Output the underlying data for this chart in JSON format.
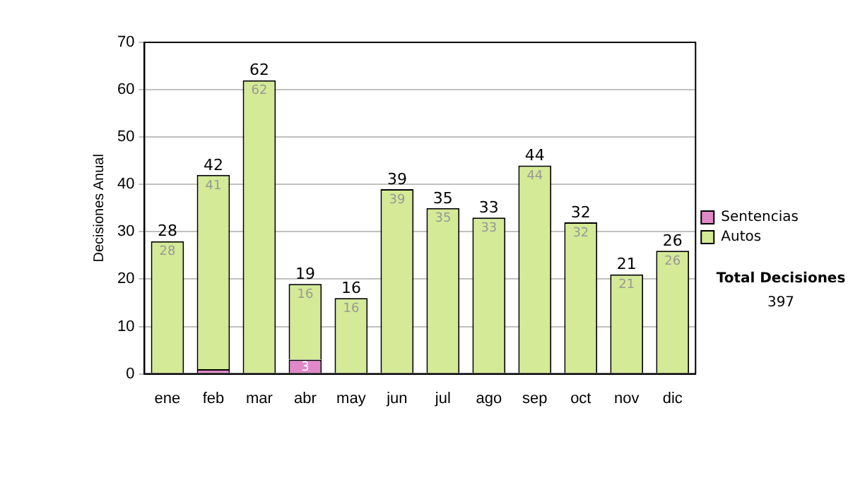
{
  "chart_data": {
    "type": "bar",
    "stacked": true,
    "ylabel": "Decisiones Anual",
    "categories": [
      "ene",
      "feb",
      "mar",
      "abr",
      "may",
      "jun",
      "jul",
      "ago",
      "sep",
      "oct",
      "nov",
      "dic"
    ],
    "series": [
      {
        "name": "Sentencias",
        "color": "#e088c8",
        "values": [
          0,
          1,
          0,
          3,
          0,
          0,
          0,
          0,
          0,
          0,
          0,
          0
        ],
        "value_labels": [
          null,
          null,
          null,
          "3",
          null,
          null,
          null,
          null,
          null,
          null,
          null,
          null
        ]
      },
      {
        "name": "Autos",
        "color": "#d4ea96",
        "values": [
          28,
          41,
          62,
          16,
          16,
          39,
          35,
          33,
          44,
          32,
          21,
          26
        ],
        "value_labels": [
          "28",
          "41",
          "62",
          "16",
          "16",
          "39",
          "35",
          "33",
          "44",
          "32",
          "21",
          "26"
        ]
      }
    ],
    "totals": [
      "28",
      "42",
      "62",
      "19",
      "16",
      "39",
      "35",
      "33",
      "44",
      "32",
      "21",
      "26"
    ],
    "ylim": [
      0,
      70
    ],
    "yticks": [
      0,
      10,
      20,
      30,
      40,
      50,
      60,
      70
    ],
    "grid": "y",
    "legend": "right",
    "annotations": [
      "Total Decisiones",
      "397"
    ]
  }
}
